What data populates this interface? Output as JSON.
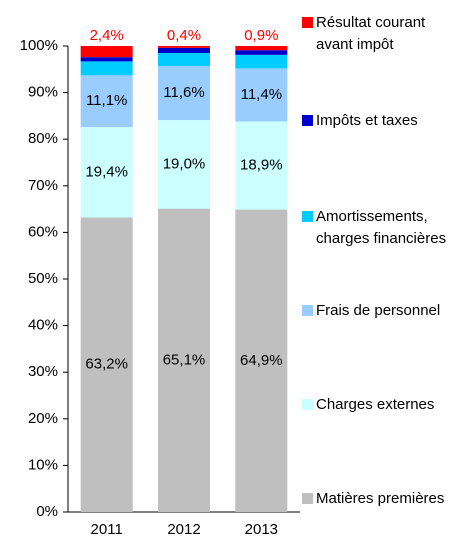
{
  "chart_data": {
    "type": "stacked_bar",
    "categories": [
      "2011",
      "2012",
      "2013"
    ],
    "ylim": [
      0,
      100
    ],
    "yticks": [
      {
        "value": 0,
        "label": "0%"
      },
      {
        "value": 10,
        "label": "10%"
      },
      {
        "value": 20,
        "label": "20%"
      },
      {
        "value": 30,
        "label": "30%"
      },
      {
        "value": 40,
        "label": "40%"
      },
      {
        "value": 50,
        "label": "50%"
      },
      {
        "value": 60,
        "label": "60%"
      },
      {
        "value": 70,
        "label": "70%"
      },
      {
        "value": 80,
        "label": "80%"
      },
      {
        "value": 90,
        "label": "90%"
      },
      {
        "value": 100,
        "label": "100%"
      }
    ],
    "series": [
      {
        "name": "Matières premières",
        "color": "#bfbfbf",
        "values": [
          63.2,
          65.1,
          64.9
        ],
        "value_labels": [
          "63,2%",
          "65,1%",
          "64,9%"
        ]
      },
      {
        "name": "Charges externes",
        "color": "#ccffff",
        "values": [
          19.4,
          19.0,
          18.9
        ],
        "value_labels": [
          "19,4%",
          "19,0%",
          "18,9%"
        ]
      },
      {
        "name": "Frais de personnel",
        "color": "#99ccff",
        "values": [
          11.1,
          11.6,
          11.4
        ],
        "value_labels": [
          "11,1%",
          "11,6%",
          "11,4%"
        ]
      },
      {
        "name": "Amortissements, charges financières",
        "color": "#00ccff",
        "values": [
          3.0,
          2.8,
          2.9
        ]
      },
      {
        "name": "Impôts et taxes",
        "color": "#0000cc",
        "values": [
          0.9,
          1.1,
          1.0
        ]
      },
      {
        "name": "Résultat courant avant impôt",
        "color": "#ff0000",
        "values": [
          2.4,
          0.4,
          0.9
        ],
        "value_labels": [
          "2,4%",
          "0,4%",
          "0,9%"
        ]
      }
    ]
  }
}
